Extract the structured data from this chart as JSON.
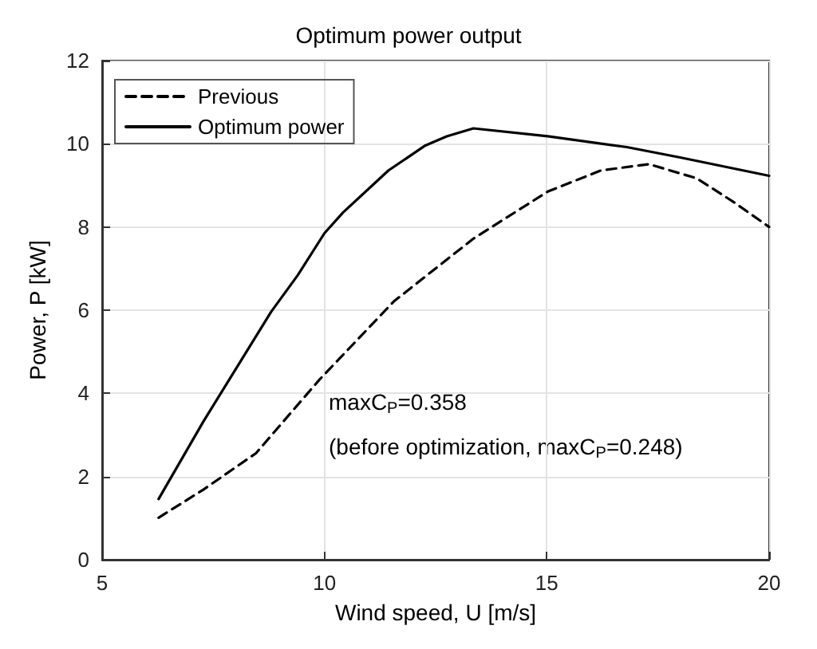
{
  "chart_data": {
    "type": "line",
    "title": "Optimum power output",
    "xlabel": "Wind speed, U [m/s]",
    "ylabel": "Power, P [kW]",
    "xlim": [
      5,
      20
    ],
    "xticks": [
      5,
      10,
      15,
      20
    ],
    "ylim": [
      0,
      12
    ],
    "yticks": [
      0,
      2,
      4,
      6,
      8,
      10,
      12
    ],
    "grid": true,
    "legend": "top left",
    "annotations": [
      "maxC$_{P}$=0.358",
      "(before optimization, maxC$_{P}$=0.248)"
    ],
    "series": [
      {
        "name": "Previous",
        "color": "#000000",
        "line_style": "dashed",
        "x": [
          6.27,
          7.27,
          8.46,
          9.88,
          11.56,
          13.35,
          15.02,
          16.22,
          17.3,
          18.37,
          19.2,
          20
        ],
        "values": [
          1.01,
          1.68,
          2.56,
          4.32,
          6.21,
          7.72,
          8.85,
          9.36,
          9.51,
          9.17,
          8.6,
          8.0
        ]
      },
      {
        "name": "Optimum power",
        "color": "#000000",
        "line_style": "solid",
        "x": [
          6.27,
          7.27,
          8.8,
          9.4,
          10.0,
          10.42,
          11.44,
          12.27,
          12.75,
          13.35,
          15.02,
          16.8,
          18.0,
          20
        ],
        "values": [
          1.46,
          3.31,
          5.96,
          6.84,
          7.85,
          8.35,
          9.36,
          9.96,
          10.18,
          10.37,
          10.18,
          9.92,
          9.67,
          9.23
        ]
      }
    ]
  }
}
